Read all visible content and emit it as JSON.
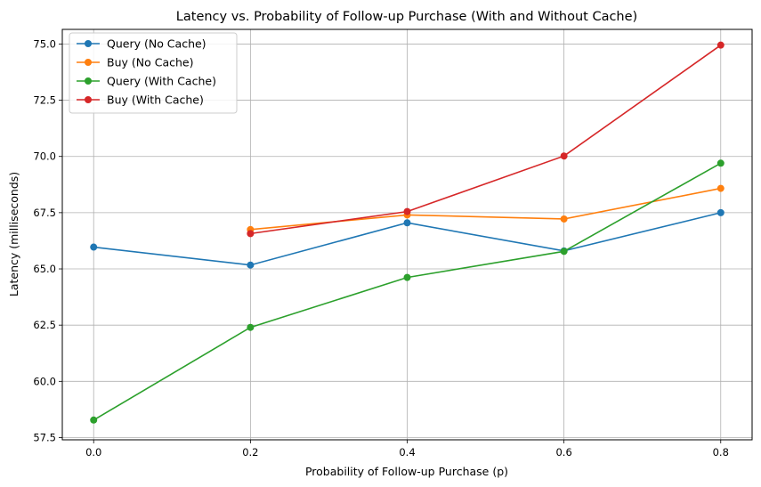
{
  "chart_data": {
    "type": "line",
    "title": "Latency vs. Probability of Follow-up Purchase (With and Without Cache)",
    "xlabel": "Probability of Follow-up Purchase (p)",
    "ylabel": "Latency (milliseconds)",
    "xlim": [
      -0.04,
      0.84
    ],
    "ylim": [
      57.4,
      75.65
    ],
    "xticks": [
      0.0,
      0.2,
      0.4,
      0.6,
      0.8
    ],
    "xtick_labels": [
      "0.0",
      "0.2",
      "0.4",
      "0.6",
      "0.8"
    ],
    "yticks": [
      57.5,
      60.0,
      62.5,
      65.0,
      67.5,
      70.0,
      72.5,
      75.0
    ],
    "ytick_labels": [
      "57.5",
      "60.0",
      "62.5",
      "65.0",
      "67.5",
      "70.0",
      "72.5",
      "75.0"
    ],
    "grid": true,
    "legend_position": "upper-left",
    "series": [
      {
        "name": "Query (No Cache)",
        "color": "#1f77b4",
        "x": [
          0.0,
          0.2,
          0.4,
          0.6,
          0.8
        ],
        "y": [
          65.97,
          65.17,
          67.05,
          65.8,
          67.5
        ]
      },
      {
        "name": "Buy (No Cache)",
        "color": "#ff7f0e",
        "x": [
          0.2,
          0.4,
          0.6,
          0.8
        ],
        "y": [
          66.75,
          67.4,
          67.22,
          68.58
        ]
      },
      {
        "name": "Query (With Cache)",
        "color": "#2ca02c",
        "x": [
          0.0,
          0.2,
          0.4,
          0.6,
          0.8
        ],
        "y": [
          58.28,
          62.4,
          64.62,
          65.78,
          69.7
        ]
      },
      {
        "name": "Buy (With Cache)",
        "color": "#d62728",
        "x": [
          0.2,
          0.4,
          0.6,
          0.8
        ],
        "y": [
          66.57,
          67.55,
          70.02,
          74.95
        ]
      }
    ]
  }
}
